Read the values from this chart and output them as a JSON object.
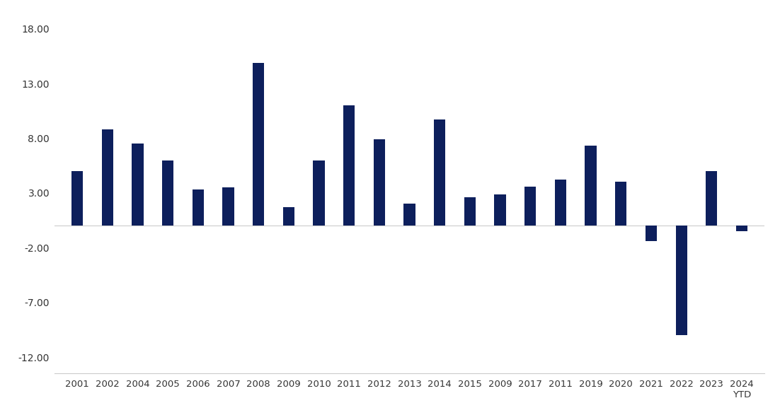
{
  "categories": [
    "2001",
    "2002",
    "2004",
    "2005",
    "2006",
    "2007",
    "2008",
    "2009",
    "2010",
    "2011",
    "2012",
    "2013",
    "2014",
    "2015",
    "2009",
    "2017",
    "2011",
    "2019",
    "2020",
    "2021",
    "2022",
    "2023",
    "2024\nYTD"
  ],
  "values": [
    5.0,
    8.8,
    7.5,
    6.0,
    3.3,
    3.5,
    14.9,
    1.7,
    6.0,
    11.0,
    7.9,
    2.0,
    9.7,
    2.6,
    2.9,
    3.6,
    4.2,
    7.3,
    4.0,
    -1.4,
    -10.0,
    5.0,
    -0.5
  ],
  "bar_color": "#0d1f5c",
  "background_color": "#ffffff",
  "ylim": [
    -13.5,
    19.5
  ],
  "yticks": [
    -12.0,
    -7.0,
    -2.0,
    3.0,
    8.0,
    13.0,
    18.0
  ],
  "ytick_labels": [
    "-12.00",
    "-7.00",
    "-2.00",
    "3.00",
    "8.00",
    "13.00",
    "18.00"
  ],
  "bar_width": 0.38,
  "spine_color": "#cccccc",
  "zero_line_color": "#cccccc",
  "tick_fontsize": 9.5,
  "ytick_fontsize": 10
}
